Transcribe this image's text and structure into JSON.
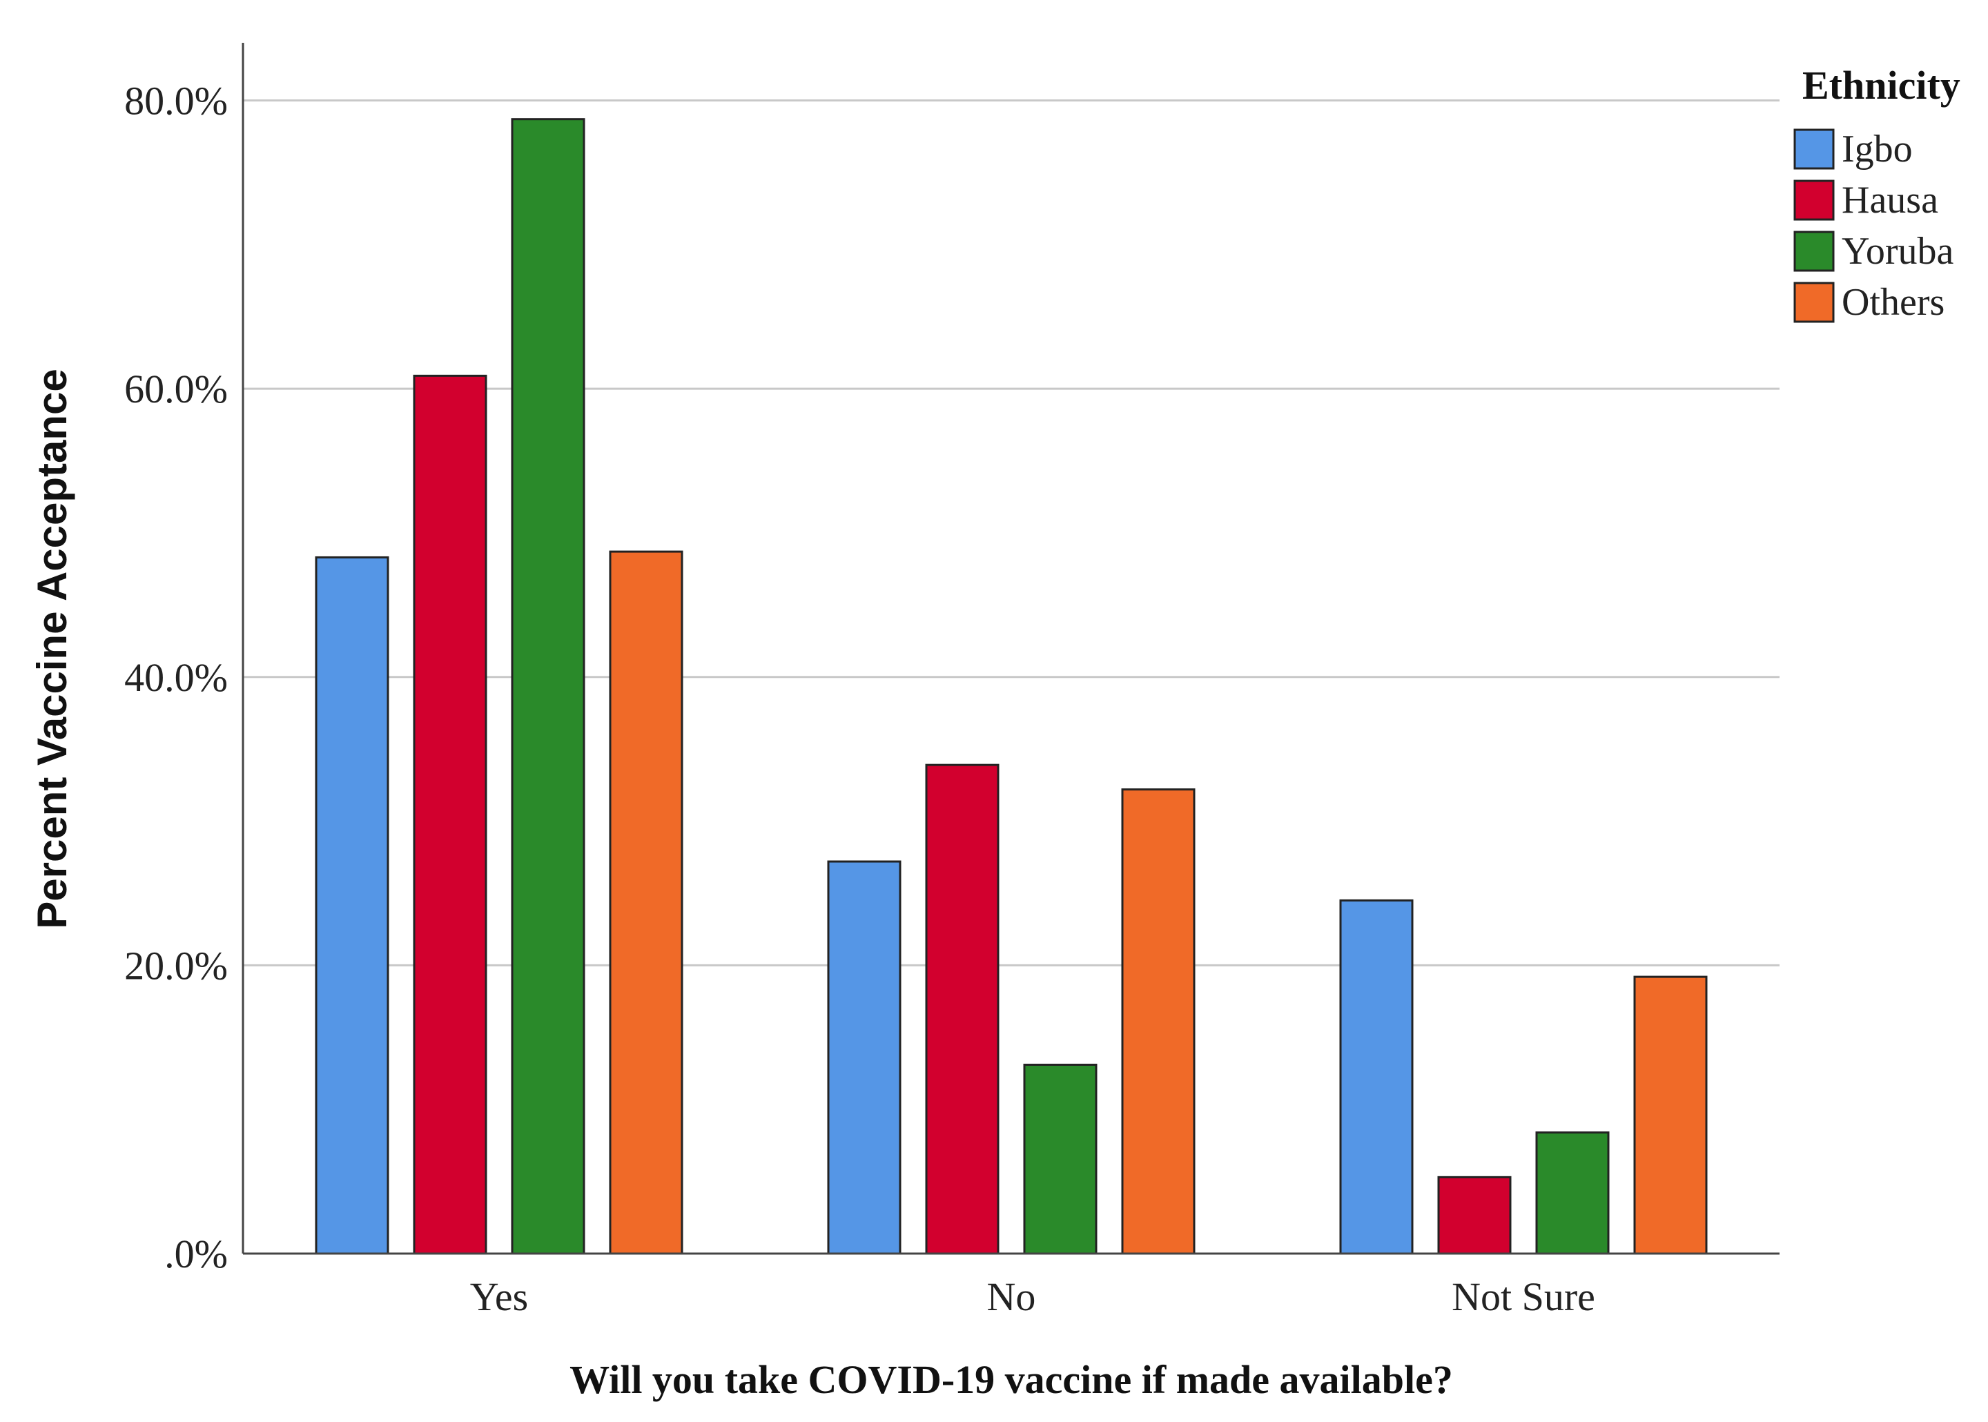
{
  "chart_data": {
    "type": "bar",
    "title": "",
    "xlabel": "Will you take COVID-19 vaccine if made available?",
    "ylabel": "Percent Vaccine Acceptance",
    "categories": [
      "Yes",
      "No",
      "Not Sure"
    ],
    "ylim": [
      0,
      84
    ],
    "yticks": [
      0,
      20,
      40,
      60,
      80
    ],
    "ytick_labels": [
      ".0%",
      "20.0%",
      "40.0%",
      "60.0%",
      "80.0%"
    ],
    "grid": true,
    "legend": {
      "title": "Ethnicity",
      "position": "top-right"
    },
    "series": [
      {
        "name": "Igbo",
        "color": "#5596e6",
        "values": [
          48.3,
          27.2,
          24.5
        ]
      },
      {
        "name": "Hausa",
        "color": "#d2002e",
        "values": [
          60.9,
          33.9,
          5.3
        ]
      },
      {
        "name": "Yoruba",
        "color": "#2a8a2a",
        "values": [
          78.7,
          13.1,
          8.4
        ]
      },
      {
        "name": "Others",
        "color": "#f06a28",
        "values": [
          48.7,
          32.2,
          19.2
        ]
      }
    ]
  }
}
